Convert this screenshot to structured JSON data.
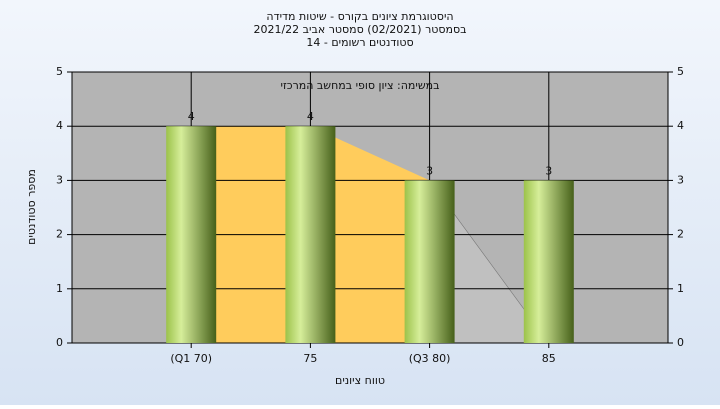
{
  "chart_data": {
    "type": "bar",
    "title_lines": [
      "היסטוגרמת ציונים בקורס - שיטות מדידה",
      "בסמסטר  (02/2021)  סמסטר אביב 2021/22",
      "סטודנטים רשומים - 14"
    ],
    "annotation": "במשימה: ציון סופי במחשב המרכזי",
    "y_label": "מספר סטודנטים",
    "x_label": "טווח ציונים",
    "categories": [
      "(Q1 70)",
      "75",
      "(Q3 80)",
      "85"
    ],
    "values": [
      4,
      4,
      3,
      3
    ],
    "color": "#9cc24a",
    "area_color": "#ffcc5c",
    "tail_color": "#c0c0c0",
    "ylim": [
      0,
      5
    ],
    "yticks": [
      0,
      1,
      2,
      3,
      4,
      5
    ],
    "grid": true
  }
}
